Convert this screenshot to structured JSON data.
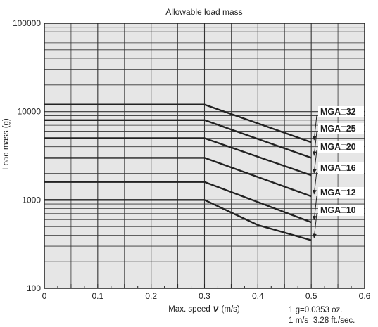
{
  "chart_data": {
    "type": "line",
    "title": "Allowable load mass",
    "xlabel": "Max. speed",
    "xlabel_symbol": "ν",
    "xlabel_unit": "(m/s)",
    "ylabel": "Load mass (g)",
    "xlim": [
      0,
      0.6
    ],
    "ylim": [
      100,
      100000
    ],
    "yscale": "log",
    "x_ticks": [
      "0",
      "0.1",
      "0.2",
      "0.3",
      "0.4",
      "0.5",
      "0.6"
    ],
    "y_ticks": [
      "100",
      "1000",
      "10000",
      "100000"
    ],
    "grid": true,
    "legend": "inline-right",
    "series": [
      {
        "name": "MGA□32",
        "x": [
          0,
          0.3,
          0.5
        ],
        "y": [
          12000,
          12000,
          4500
        ]
      },
      {
        "name": "MGA□25",
        "x": [
          0,
          0.3,
          0.5
        ],
        "y": [
          8000,
          8000,
          3000
        ]
      },
      {
        "name": "MGA□20",
        "x": [
          0,
          0.3,
          0.5
        ],
        "y": [
          5000,
          5000,
          1900
        ]
      },
      {
        "name": "MGA□16",
        "x": [
          0,
          0.3,
          0.5
        ],
        "y": [
          3000,
          3000,
          1100
        ]
      },
      {
        "name": "MGA□12",
        "x": [
          0,
          0.3,
          0.5
        ],
        "y": [
          1600,
          1600,
          560
        ]
      },
      {
        "name": "MGA□10",
        "x": [
          0,
          0.3,
          0.4,
          0.5
        ],
        "y": [
          1000,
          1000,
          520,
          350
        ]
      }
    ],
    "notes": [
      "1 g=0.0353 oz.",
      "1 m/s=3.28 ft./sec."
    ]
  }
}
